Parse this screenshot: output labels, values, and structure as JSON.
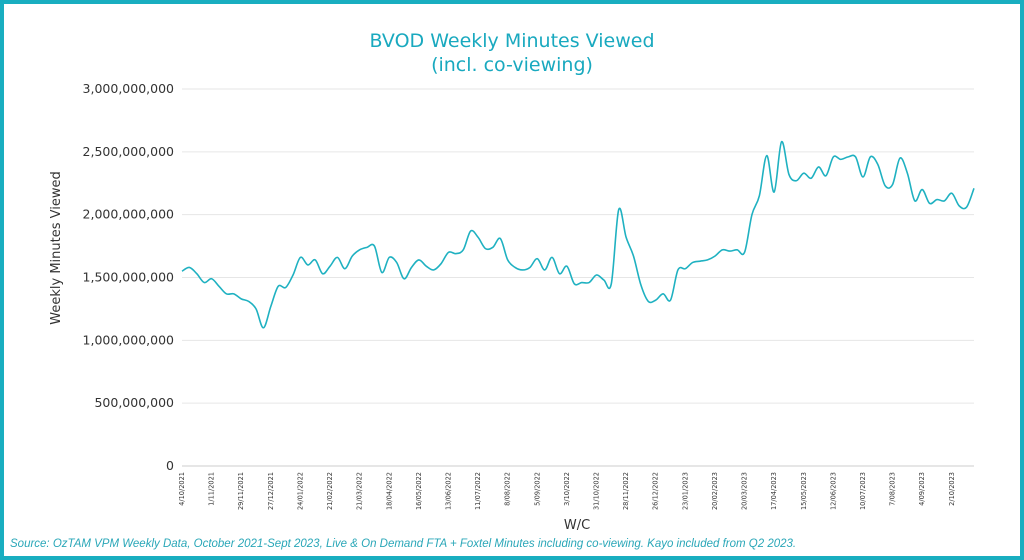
{
  "title_line1": "BVOD Weekly Minutes Viewed",
  "title_line2": "(incl. co-viewing)",
  "source": "Source: OzTAM VPM Weekly Data, October 2021-Sept 2023, Live & On Demand FTA + Foxtel Minutes including co-viewing. Kayo included from Q2 2023.",
  "colors": {
    "line": "#1fb1c1",
    "title": "#19a9bf",
    "border": "#19aec0",
    "grid": "#e6e6e6"
  },
  "chart_data": {
    "type": "line",
    "title": "BVOD Weekly Minutes Viewed (incl. co-viewing)",
    "xlabel": "W/C",
    "ylabel": "Weekly Minutes Viewed",
    "ylim": [
      0,
      3000000000
    ],
    "yticks": [
      0,
      500000000,
      1000000000,
      1500000000,
      2000000000,
      2500000000,
      3000000000
    ],
    "ytick_labels": [
      "0",
      "500,000,000",
      "1,000,000,000",
      "1,500,000,000",
      "2,000,000,000",
      "2,500,000,000",
      "3,000,000,000"
    ],
    "grid": true,
    "legend": "none",
    "x_tick_labels": [
      "4/10/2021",
      "1/11/2021",
      "29/11/2021",
      "27/12/2021",
      "24/01/2022",
      "21/02/2022",
      "21/03/2022",
      "18/04/2022",
      "16/05/2022",
      "13/06/2022",
      "11/07/2022",
      "8/08/2022",
      "5/09/2022",
      "3/10/2022",
      "31/10/2022",
      "28/11/2022",
      "26/12/2022",
      "23/01/2023",
      "20/02/2023",
      "20/03/2023",
      "17/04/2023",
      "15/05/2023",
      "12/06/2023",
      "10/07/2023",
      "7/08/2023",
      "4/09/2023",
      "2/10/2023"
    ],
    "series": [
      {
        "values": [
          1550000000,
          1580000000,
          1530000000,
          1460000000,
          1490000000,
          1430000000,
          1370000000,
          1370000000,
          1330000000,
          1310000000,
          1250000000,
          1100000000,
          1270000000,
          1430000000,
          1420000000,
          1520000000,
          1660000000,
          1600000000,
          1640000000,
          1530000000,
          1590000000,
          1660000000,
          1570000000,
          1670000000,
          1720000000,
          1740000000,
          1750000000,
          1540000000,
          1660000000,
          1620000000,
          1490000000,
          1580000000,
          1640000000,
          1590000000,
          1560000000,
          1610000000,
          1700000000,
          1690000000,
          1720000000,
          1870000000,
          1820000000,
          1730000000,
          1740000000,
          1810000000,
          1640000000,
          1580000000,
          1560000000,
          1580000000,
          1650000000,
          1560000000,
          1660000000,
          1530000000,
          1590000000,
          1450000000,
          1460000000,
          1460000000,
          1520000000,
          1480000000,
          1450000000,
          2040000000,
          1820000000,
          1670000000,
          1440000000,
          1310000000,
          1320000000,
          1370000000,
          1320000000,
          1560000000,
          1570000000,
          1620000000,
          1630000000,
          1640000000,
          1670000000,
          1720000000,
          1710000000,
          1720000000,
          1700000000,
          2000000000,
          2150000000,
          2470000000,
          2180000000,
          2580000000,
          2320000000,
          2270000000,
          2330000000,
          2290000000,
          2380000000,
          2310000000,
          2460000000,
          2440000000,
          2460000000,
          2460000000,
          2300000000,
          2460000000,
          2400000000,
          2230000000,
          2240000000,
          2450000000,
          2330000000,
          2110000000,
          2200000000,
          2090000000,
          2120000000,
          2110000000,
          2170000000,
          2070000000,
          2060000000,
          2210000000
        ]
      }
    ]
  }
}
